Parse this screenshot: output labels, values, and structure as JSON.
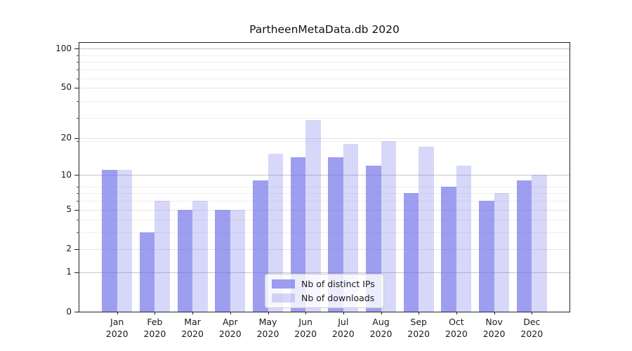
{
  "figure": {
    "title": "PartheenMetaData.db 2020"
  },
  "chart_data": {
    "type": "bar",
    "title": "PartheenMetaData.db 2020",
    "categories": [
      "Jan",
      "Feb",
      "Mar",
      "Apr",
      "May",
      "Jun",
      "Jul",
      "Aug",
      "Sep",
      "Oct",
      "Nov",
      "Dec"
    ],
    "category_second_line": "2020",
    "series": [
      {
        "name": "Nb of distinct IPs",
        "color": "rgba(110,110,232,0.67)",
        "color_hex": "#9e9eef",
        "values": [
          11,
          3,
          5,
          5,
          9,
          14,
          14,
          12,
          7,
          8,
          6,
          9
        ]
      },
      {
        "name": "Nb of downloads",
        "color": "rgba(110,110,232,0.28)",
        "color_hex": "#d8d8f7",
        "values": [
          11,
          6,
          6,
          5,
          15,
          28,
          18,
          19,
          17,
          12,
          7,
          10
        ]
      }
    ],
    "xlabel": "",
    "ylabel": "",
    "y_axis": {
      "scale": "log1p",
      "tick_values": [
        0,
        1,
        2,
        5,
        10,
        20,
        50,
        100
      ],
      "tick_labels": [
        "0",
        "1",
        "2",
        "5",
        "10",
        "20",
        "50",
        "100"
      ],
      "minor_tick_values": [
        3,
        4,
        6,
        7,
        8,
        19,
        29,
        39,
        59,
        69,
        79,
        89
      ],
      "strong_grid_values": [
        1,
        10,
        100
      ],
      "ylim_top_value": 112
    },
    "grid": true,
    "legend_position": "lower center"
  },
  "colors": {
    "background": "#ffffff",
    "bar_primary": "#9e9eef",
    "bar_secondary": "#d8d8f7",
    "grid_strong": "#c6c6c6",
    "grid_weak": "#e4e4e4",
    "grid_minor": "#efefef",
    "spine": "#222222",
    "text": "#1a1a1a",
    "legend_border": "#cccccc",
    "legend_bg": "rgba(255,255,255,0.8)"
  }
}
